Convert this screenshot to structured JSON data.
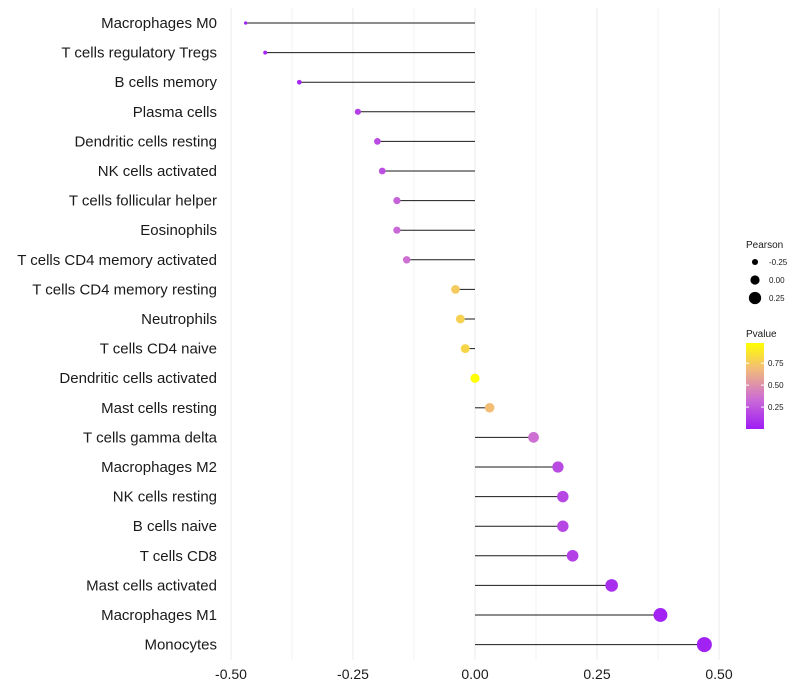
{
  "chart_data": {
    "type": "lollipop",
    "title": "",
    "xlabel": "",
    "ylabel": "",
    "xlim": [
      -0.5,
      0.5
    ],
    "x_ticks": [
      -0.5,
      -0.25,
      0,
      0.25,
      0.5
    ],
    "x_tick_labels": [
      "-0.50",
      "-0.25",
      "0.00",
      "0.25",
      "0.50"
    ],
    "grid": "vertical",
    "categories": [
      "Macrophages M0",
      "T cells regulatory  Tregs",
      "B cells memory",
      "Plasma cells",
      "Dendritic cells resting",
      "NK cells activated",
      "T cells follicular helper",
      "Eosinophils",
      "T cells CD4 memory activated",
      "T cells CD4 memory resting",
      "Neutrophils",
      "T cells CD4 naive",
      "Dendritic cells activated",
      "Mast cells resting",
      "T cells gamma delta",
      "Macrophages M2",
      "NK cells resting",
      "B cells naive",
      "T cells CD8",
      "Mast cells activated",
      "Macrophages M1",
      "Monocytes"
    ],
    "values": [
      -0.47,
      -0.43,
      -0.36,
      -0.24,
      -0.2,
      -0.19,
      -0.16,
      -0.16,
      -0.14,
      -0.04,
      -0.03,
      -0.02,
      0.0,
      0.03,
      0.12,
      0.17,
      0.18,
      0.18,
      0.2,
      0.28,
      0.38,
      0.47
    ],
    "pvalues": [
      0.02,
      0.03,
      0.05,
      0.15,
      0.2,
      0.22,
      0.3,
      0.32,
      0.35,
      0.75,
      0.78,
      0.8,
      0.98,
      0.7,
      0.35,
      0.2,
      0.18,
      0.18,
      0.15,
      0.08,
      0.03,
      0.02
    ],
    "legend_pearson": {
      "title": "Pearson",
      "labels": [
        "-0.25",
        "0.00",
        "0.25"
      ],
      "values": [
        -0.25,
        0.0,
        0.25
      ]
    },
    "legend_pvalue": {
      "title": "Pvalue",
      "labels": [
        "0.75",
        "0.50",
        "0.25"
      ],
      "values": [
        0.75,
        0.5,
        0.25
      ],
      "range": [
        0,
        0.98
      ],
      "colors": [
        "#9f1cf5",
        "#cc6dd5",
        "#f2bb79",
        "#ffff00"
      ]
    },
    "legend_placement": "right",
    "stem_color": "#1a1a1a",
    "grid_color": "#ebebeb"
  }
}
